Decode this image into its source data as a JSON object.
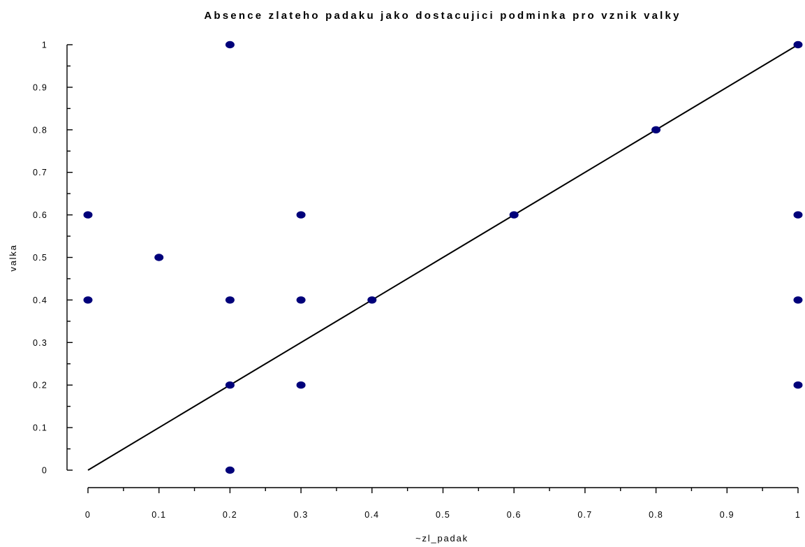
{
  "chart_data": {
    "type": "scatter",
    "title": "Absence zlateho padaku jako dostacujici podminka pro vznik valky",
    "xlabel": "~zl_padak",
    "ylabel": "valka",
    "xlim": [
      0,
      1
    ],
    "ylim": [
      0,
      1
    ],
    "x_ticks": [
      "0",
      "0.1",
      "0.2",
      "0.3",
      "0.4",
      "0.5",
      "0.6",
      "0.7",
      "0.8",
      "0.9",
      "1"
    ],
    "y_ticks": [
      "0",
      "0.1",
      "0.2",
      "0.3",
      "0.4",
      "0.5",
      "0.6",
      "0.7",
      "0.8",
      "0.9",
      "1"
    ],
    "x_tick_values": [
      0,
      0.1,
      0.2,
      0.3,
      0.4,
      0.5,
      0.6,
      0.7,
      0.8,
      0.9,
      1
    ],
    "y_tick_values": [
      0,
      0.1,
      0.2,
      0.3,
      0.4,
      0.5,
      0.6,
      0.7,
      0.8,
      0.9,
      1
    ],
    "minor_ticks": true,
    "grid": false,
    "legend": "none",
    "reference_line": {
      "x": [
        0,
        1
      ],
      "y": [
        0,
        1
      ]
    },
    "point_color": "#00007a",
    "points": [
      {
        "x": 0,
        "y": 0.6
      },
      {
        "x": 0,
        "y": 0.4
      },
      {
        "x": 0.1,
        "y": 0.5
      },
      {
        "x": 0.2,
        "y": 1
      },
      {
        "x": 0.2,
        "y": 0.4
      },
      {
        "x": 0.2,
        "y": 0.2
      },
      {
        "x": 0.2,
        "y": 0
      },
      {
        "x": 0.3,
        "y": 0.6
      },
      {
        "x": 0.3,
        "y": 0.4
      },
      {
        "x": 0.3,
        "y": 0.2
      },
      {
        "x": 0.4,
        "y": 0.4
      },
      {
        "x": 0.6,
        "y": 0.6
      },
      {
        "x": 0.8,
        "y": 0.8
      },
      {
        "x": 1,
        "y": 1
      },
      {
        "x": 1,
        "y": 0.6
      },
      {
        "x": 1,
        "y": 0.4
      },
      {
        "x": 1,
        "y": 0.2
      }
    ]
  }
}
